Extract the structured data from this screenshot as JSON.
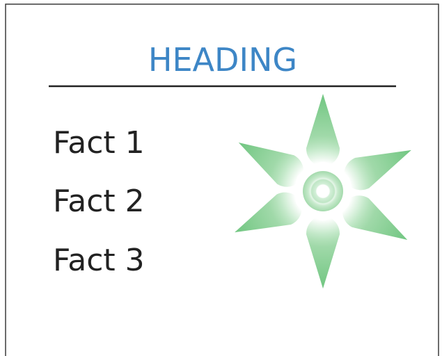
{
  "heading": "HEADING",
  "facts": [
    "Fact 1",
    "Fact 2",
    "Fact 3"
  ]
}
